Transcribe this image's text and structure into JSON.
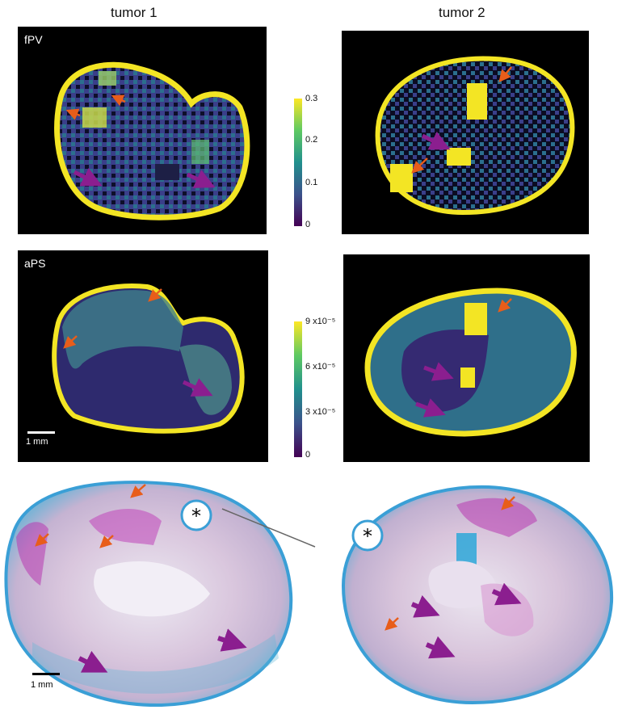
{
  "columns": [
    "tumor 1",
    "tumor 2"
  ],
  "rows": [
    {
      "label": "fPV",
      "colorbar": {
        "ticks": [
          "0.3",
          "0.2",
          "0.1",
          "0"
        ]
      }
    },
    {
      "label": "aPS",
      "colorbar": {
        "ticks": [
          "9 x10⁻⁵",
          "6 x10⁻⁵",
          "3 x10⁻⁵",
          "0"
        ]
      }
    }
  ],
  "scalebar_label": "1 mm",
  "vessel_marker": "*",
  "colors": {
    "arrow_orange": "#e85d1a",
    "arrow_purple": "#8b1e8f",
    "viridis_low": "#3b0f70",
    "viridis_mid": "#21908d",
    "viridis_high": "#fde725"
  },
  "icons": [
    "orange-arrow-icon",
    "purple-arrow-icon"
  ]
}
